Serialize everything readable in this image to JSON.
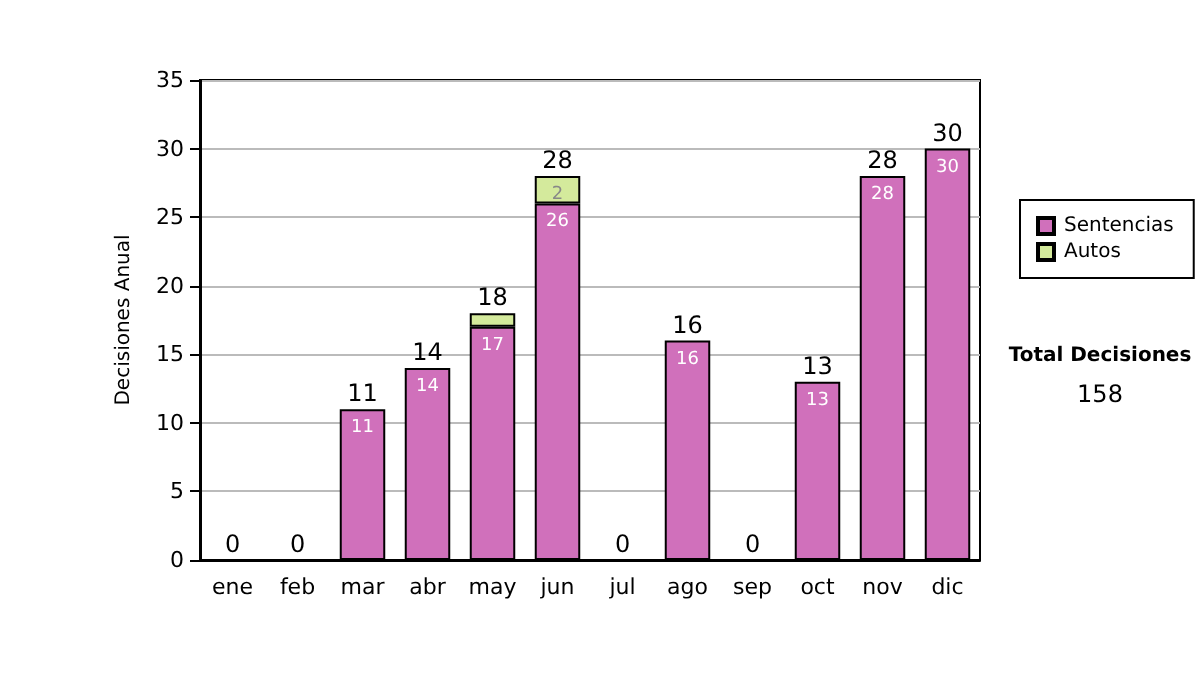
{
  "chart_data": {
    "type": "bar",
    "stacked": true,
    "ylabel": "Decisiones Anual",
    "categories": [
      "ene",
      "feb",
      "mar",
      "abr",
      "may",
      "jun",
      "jul",
      "ago",
      "sep",
      "oct",
      "nov",
      "dic"
    ],
    "series": [
      {
        "name": "Sentencias",
        "color": "#d070bb",
        "values": [
          0,
          0,
          11,
          14,
          17,
          26,
          0,
          16,
          0,
          13,
          28,
          30
        ],
        "value_labels": [
          null,
          null,
          "11",
          "14",
          "17",
          "26",
          null,
          "16",
          null,
          "13",
          "28",
          "30"
        ]
      },
      {
        "name": "Autos",
        "color": "#d4ea9c",
        "values": [
          0,
          0,
          0,
          0,
          1,
          2,
          0,
          0,
          0,
          0,
          0,
          0
        ],
        "value_labels": [
          null,
          null,
          null,
          null,
          null,
          "2",
          null,
          null,
          null,
          null,
          null,
          null
        ]
      }
    ],
    "totals": [
      "0",
      "0",
      "11",
      "14",
      "18",
      "28",
      "0",
      "16",
      "0",
      "13",
      "28",
      "30"
    ],
    "ylim": [
      0,
      35
    ],
    "yticks": [
      0,
      5,
      10,
      15,
      20,
      25,
      30,
      35
    ],
    "grid": "y",
    "legend": "right",
    "annotations": [
      "Total Decisiones",
      "158"
    ]
  }
}
